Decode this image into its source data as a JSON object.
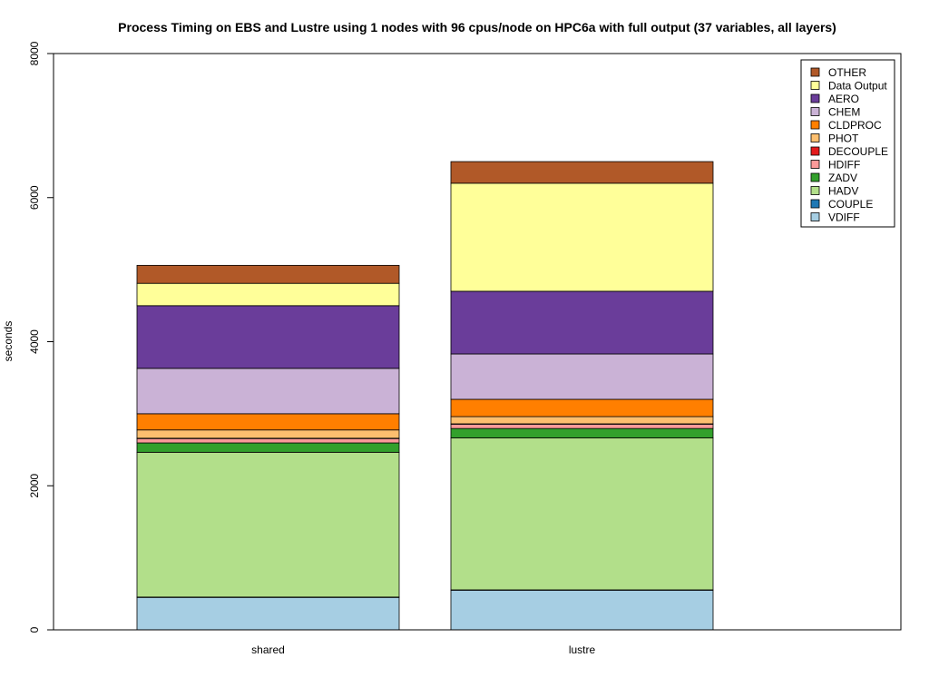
{
  "chart_data": {
    "type": "bar",
    "stacked": true,
    "title": "Process Timing on EBS and Lustre using 1 nodes with 96 cpus/node on HPC6a with full output (37 variables, all layers)",
    "xlabel": "",
    "ylabel": "seconds",
    "ylim": [
      0,
      8000
    ],
    "yticks": [
      0,
      2000,
      4000,
      6000,
      8000
    ],
    "categories": [
      "shared",
      "lustre"
    ],
    "legend_position": "top-right",
    "series": [
      {
        "name": "VDIFF",
        "color": "#a6cee3",
        "values": [
          450,
          550
        ]
      },
      {
        "name": "COUPLE",
        "color": "#1f78b4",
        "values": [
          5,
          5
        ]
      },
      {
        "name": "HADV",
        "color": "#b2df8a",
        "values": [
          2010,
          2110
        ]
      },
      {
        "name": "ZADV",
        "color": "#33a02c",
        "values": [
          130,
          130
        ]
      },
      {
        "name": "HDIFF",
        "color": "#fb9a99",
        "values": [
          60,
          60
        ]
      },
      {
        "name": "DECOUPLE",
        "color": "#e31a1c",
        "values": [
          5,
          5
        ]
      },
      {
        "name": "PHOT",
        "color": "#fdbf6f",
        "values": [
          115,
          100
        ]
      },
      {
        "name": "CLDPROC",
        "color": "#ff7f00",
        "values": [
          225,
          240
        ]
      },
      {
        "name": "CHEM",
        "color": "#cab2d6",
        "values": [
          630,
          630
        ]
      },
      {
        "name": "AERO",
        "color": "#6a3d9a",
        "values": [
          870,
          870
        ]
      },
      {
        "name": "Data Output",
        "color": "#ffff99",
        "values": [
          310,
          1500
        ]
      },
      {
        "name": "OTHER",
        "color": "#b15928",
        "values": [
          250,
          300
        ]
      }
    ]
  }
}
